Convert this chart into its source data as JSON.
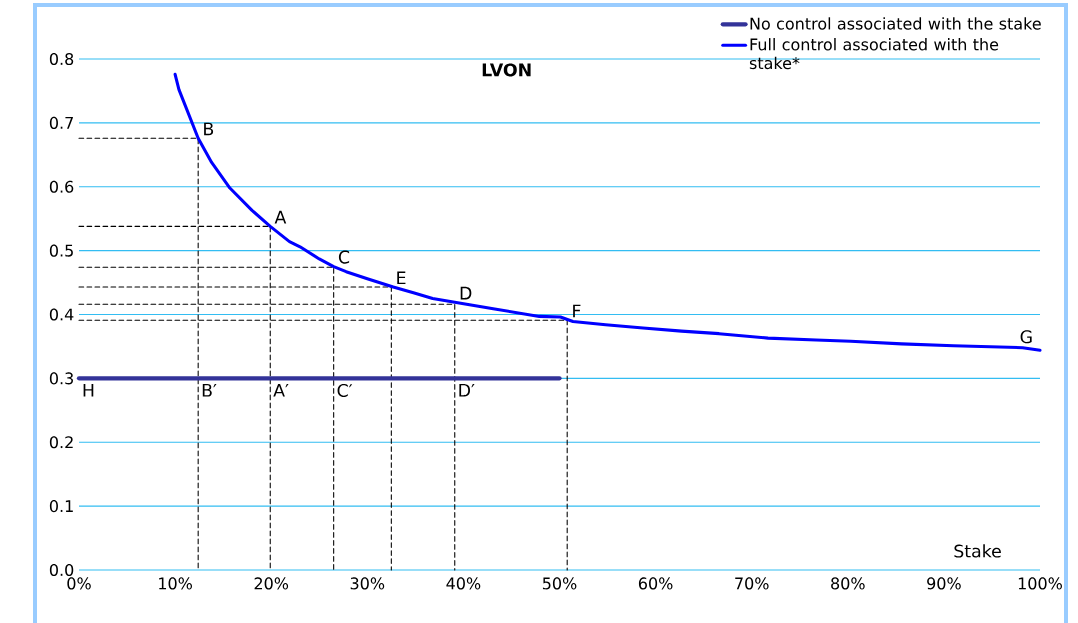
{
  "chart_data": {
    "type": "line",
    "title": "LVON",
    "xlabel": "Stake",
    "xlim": [
      0,
      100
    ],
    "ylim": [
      0,
      0.8
    ],
    "xticks": [
      {
        "value": 0,
        "label": "0%"
      },
      {
        "value": 10,
        "label": "10%"
      },
      {
        "value": 20,
        "label": "20%"
      },
      {
        "value": 30,
        "label": "30%"
      },
      {
        "value": 40,
        "label": "40%"
      },
      {
        "value": 50,
        "label": "50%"
      },
      {
        "value": 60,
        "label": "60%"
      },
      {
        "value": 70,
        "label": "70%"
      },
      {
        "value": 80,
        "label": "80%"
      },
      {
        "value": 90,
        "label": "90%"
      },
      {
        "value": 100,
        "label": "100%"
      }
    ],
    "yticks": [
      {
        "value": 0,
        "label": "0.0"
      },
      0.1,
      0.2,
      0.3,
      0.4,
      0.5,
      0.6,
      0.7,
      0.8
    ],
    "grid": "y",
    "legend": "top right",
    "series": [
      {
        "name": "No control associated with the stake",
        "color": "#333399",
        "x": [
          0,
          50
        ],
        "values": [
          0.3,
          0.3
        ]
      },
      {
        "name": "Full control associated with the stake*",
        "color": "#0000ff",
        "x": [
          10.0,
          10.4,
          12.4,
          13.8,
          15.7,
          18.0,
          19.9,
          21.9,
          23.0,
          25.0,
          26.5,
          27.8,
          30.0,
          32.7,
          34.8,
          36.8,
          39.1,
          43.1,
          47.9,
          50.1,
          51.4,
          54.8,
          58.7,
          62.7,
          66.6,
          71.7,
          76.7,
          80.3,
          85.6,
          91.0,
          98.2,
          100.0
        ],
        "values": [
          0.776,
          0.752,
          0.676,
          0.638,
          0.598,
          0.563,
          0.538,
          0.514,
          0.506,
          0.487,
          0.475,
          0.467,
          0.456,
          0.443,
          0.434,
          0.425,
          0.419,
          0.409,
          0.397,
          0.396,
          0.389,
          0.384,
          0.379,
          0.374,
          0.37,
          0.363,
          0.36,
          0.358,
          0.354,
          0.351,
          0.348,
          0.344
        ]
      },
      {
        "color": "#000000",
        "line_style": "dashed",
        "x": [
          0,
          12.4,
          12.4
        ],
        "values": [
          0.676,
          0.676,
          0
        ]
      },
      {
        "color": "#000000",
        "line_style": "dashed",
        "x": [
          0,
          19.9,
          19.9
        ],
        "values": [
          0.538,
          0.538,
          0
        ]
      },
      {
        "color": "#000000",
        "line_style": "dashed",
        "x": [
          0,
          26.5,
          26.5
        ],
        "values": [
          0.474,
          0.474,
          0
        ]
      },
      {
        "color": "#000000",
        "line_style": "dashed",
        "x": [
          0,
          32.5,
          32.5
        ],
        "values": [
          0.443,
          0.443,
          0
        ]
      },
      {
        "color": "#000000",
        "line_style": "dashed",
        "x": [
          0,
          39.1,
          39.1
        ],
        "values": [
          0.416,
          0.416,
          0
        ]
      },
      {
        "color": "#000000",
        "line_style": "dashed",
        "x": [
          0,
          50.8,
          50.8
        ],
        "values": [
          0.391,
          0.391,
          0
        ]
      }
    ],
    "annotations": [
      {
        "text": "B",
        "x": 12.4,
        "y": 0.676
      },
      {
        "text": "A",
        "x": 19.9,
        "y": 0.538
      },
      {
        "text": "C",
        "x": 26.5,
        "y": 0.475
      },
      {
        "text": "E",
        "x": 32.5,
        "y": 0.443
      },
      {
        "text": "D",
        "x": 39.1,
        "y": 0.419
      },
      {
        "text": "F",
        "x": 50.8,
        "y": 0.391
      },
      {
        "text": "G",
        "x": 100,
        "y": 0.344
      },
      {
        "text": "H",
        "x": 0,
        "y": 0.3
      },
      {
        "text": "B′",
        "x": 12.4,
        "y": 0.3
      },
      {
        "text": "A′",
        "x": 19.9,
        "y": 0.3
      },
      {
        "text": "C′",
        "x": 26.5,
        "y": 0.3
      },
      {
        "text": "D′",
        "x": 39.1,
        "y": 0.3
      }
    ]
  }
}
